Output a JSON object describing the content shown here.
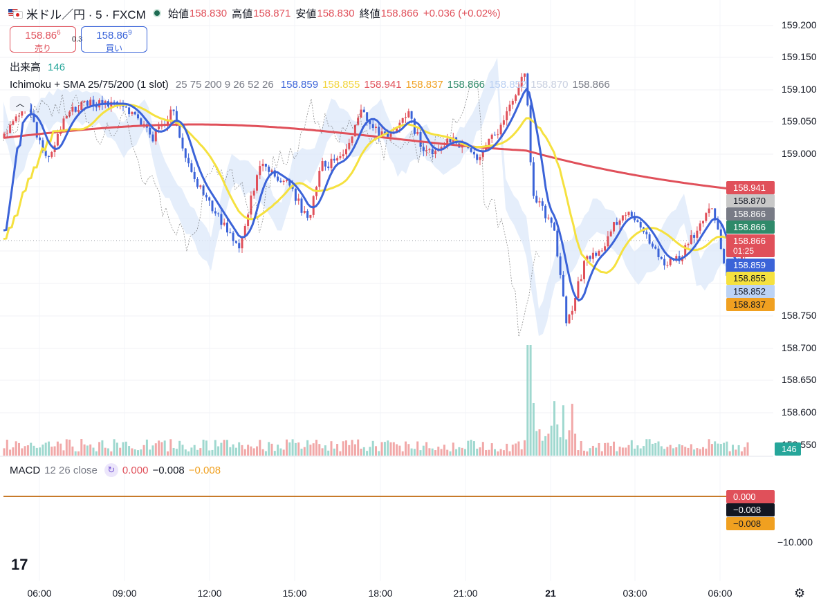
{
  "header": {
    "symbol": "米ドル／円 · 5 · FXCM",
    "open_label": "始値",
    "open": "158.830",
    "high_label": "高値",
    "high": "158.871",
    "low_label": "安値",
    "low": "158.830",
    "close_label": "終値",
    "close": "158.866",
    "change": "+0.036 (+0.02%)"
  },
  "trade": {
    "sell_price": "158.86",
    "sell_sup": "6",
    "sell_label": "売り",
    "spread": "0.3",
    "buy_price": "158.86",
    "buy_sup": "9",
    "buy_label": "買い"
  },
  "volume": {
    "label": "出来高",
    "value": "146"
  },
  "ichimoku": {
    "label": "Ichimoku + SMA 25/75/200 (1 slot)",
    "params": "25 75 200 9 26 52 26",
    "values": [
      {
        "v": "158.859",
        "color": "#3b63d8"
      },
      {
        "v": "158.855",
        "color": "#f2d43b"
      },
      {
        "v": "158.941",
        "color": "#e0505a"
      },
      {
        "v": "158.837",
        "color": "#f0a020"
      },
      {
        "v": "158.866",
        "color": "#2f8a6a"
      },
      {
        "v": "158.852",
        "color": "#b9cff2"
      },
      {
        "v": "158.870",
        "color": "#c8cfe0"
      },
      {
        "v": "158.866",
        "color": "#787b86"
      }
    ]
  },
  "macd": {
    "label": "MACD",
    "params": "12 26 close",
    "v1": "0.000",
    "v2": "−0.008",
    "v3": "−0.008"
  },
  "price_axis": [
    "159.200",
    "159.150",
    "159.100",
    "159.050",
    "159.000",
    "158.750",
    "158.700",
    "158.650",
    "158.600",
    "158.550"
  ],
  "price_tags": [
    {
      "text": "158.941",
      "bg": "#e0505a",
      "color": "#ffffff"
    },
    {
      "text": "158.870",
      "bg": "#c8c8c8",
      "color": "#131722"
    },
    {
      "text": "158.866",
      "bg": "#787b86",
      "color": "#ffffff"
    },
    {
      "text": "158.866",
      "bg": "#2f8a6a",
      "color": "#ffffff"
    },
    {
      "text": "158.866",
      "bg": "#e0505a",
      "color": "#ffffff"
    },
    {
      "text": "01:25",
      "bg": "#e0505a",
      "color": "#ffffff"
    },
    {
      "text": "158.859",
      "bg": "#3b63d8",
      "color": "#ffffff"
    },
    {
      "text": "158.855",
      "bg": "#f5e13f",
      "color": "#131722"
    },
    {
      "text": "158.852",
      "bg": "#bcd3f5",
      "color": "#131722"
    },
    {
      "text": "158.837",
      "bg": "#f0a020",
      "color": "#131722"
    }
  ],
  "volume_tag": "146",
  "macd_axis": {
    "tags": [
      {
        "text": "0.000",
        "bg": "#e0505a",
        "color": "#ffffff"
      },
      {
        "text": "−0.008",
        "bg": "#131722",
        "color": "#ffffff"
      },
      {
        "text": "−0.008",
        "bg": "#f0a020",
        "color": "#131722"
      }
    ],
    "tick": "−10.000"
  },
  "time_axis": [
    "06:00",
    "09:00",
    "12:00",
    "15:00",
    "18:00",
    "21:00",
    "21",
    "03:00",
    "06:00"
  ],
  "logo": "17"
}
